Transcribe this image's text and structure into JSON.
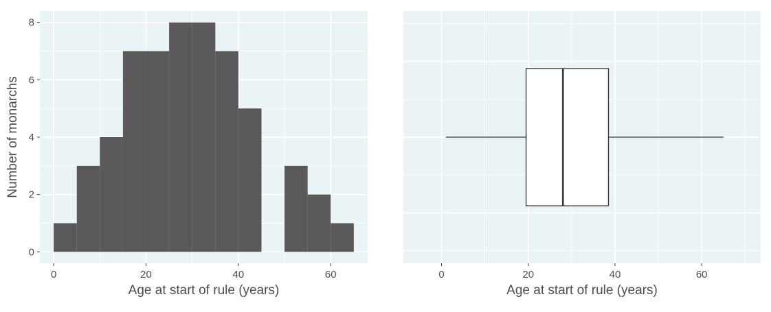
{
  "chart_data": [
    {
      "type": "bar",
      "subtype": "histogram",
      "bin_edges": [
        0,
        5,
        10,
        15,
        20,
        25,
        30,
        35,
        40,
        45,
        50,
        55,
        60,
        65
      ],
      "counts": [
        1,
        3,
        4,
        7,
        7,
        8,
        8,
        7,
        5,
        0,
        3,
        2,
        1
      ],
      "xlabel": "Age at start of rule (years)",
      "ylabel": "Number of monarchs",
      "xlim": [
        -3,
        68
      ],
      "ylim": [
        -0.4,
        8.4
      ],
      "xticks": [
        0,
        20,
        40,
        60
      ],
      "yticks": [
        0,
        2,
        4,
        6,
        8
      ],
      "bar_color": "#595959",
      "panel_background": "#eaf3f6",
      "grid": true
    },
    {
      "type": "box",
      "orientation": "horizontal",
      "stats": {
        "whisker_low": 1,
        "q1": 19.5,
        "median": 28,
        "q3": 38.5,
        "whisker_high": 65
      },
      "xlabel": "Age at start of rule (years)",
      "ylabel": "",
      "xlim": [
        -8.8,
        73.6
      ],
      "xticks": [
        0,
        20,
        40,
        60
      ],
      "box_fill": "#ffffff",
      "line_color": "#333333",
      "panel_background": "#eaf3f6",
      "grid": true
    }
  ]
}
